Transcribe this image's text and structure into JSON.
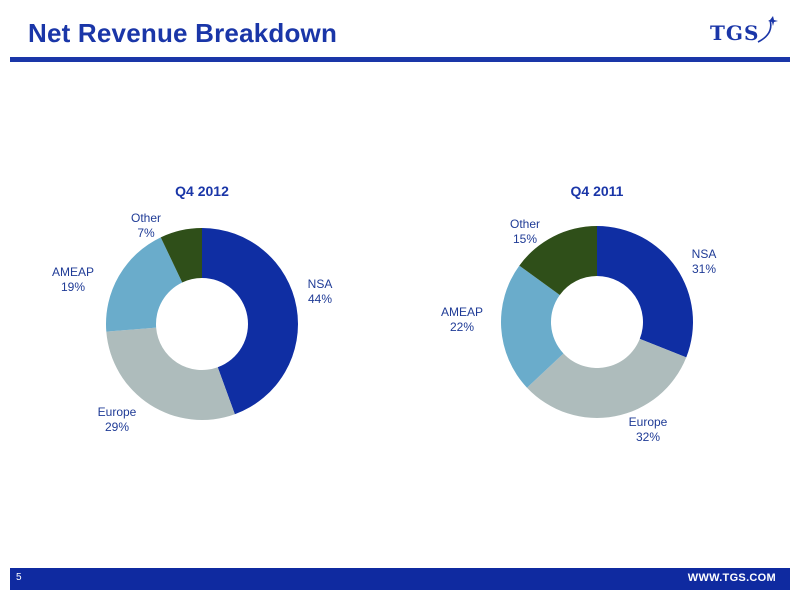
{
  "page": {
    "title": "Net Revenue Breakdown",
    "logo": "TGS",
    "page_number": "5",
    "footer_url": "WWW.TGS.COM"
  },
  "colors": {
    "brand": "#1a36a8",
    "footer": "#0f2aa0",
    "label": "#1f3b96"
  },
  "chart_data": [
    {
      "type": "pie",
      "title": "Q4 2012",
      "categories": [
        "NSA",
        "Europe",
        "AMEAP",
        "Other"
      ],
      "values": [
        44,
        29,
        19,
        7
      ],
      "value_labels": [
        "44%",
        "29%",
        "19%",
        "7%"
      ],
      "colors": [
        "#0f2ea3",
        "#aebcbc",
        "#6aaccb",
        "#2f4f19"
      ]
    },
    {
      "type": "pie",
      "title": "Q4 2011",
      "categories": [
        "NSA",
        "Europe",
        "AMEAP",
        "Other"
      ],
      "values": [
        31,
        32,
        22,
        15
      ],
      "value_labels": [
        "31%",
        "32%",
        "22%",
        "15%"
      ],
      "colors": [
        "#0f2ea3",
        "#aebcbc",
        "#6aaccb",
        "#2f4f19"
      ]
    }
  ]
}
